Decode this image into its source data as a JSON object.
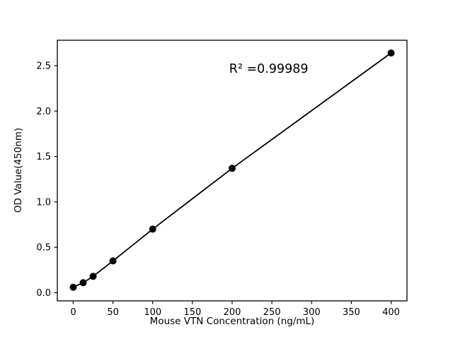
{
  "figure": {
    "background": "#ffffff"
  },
  "chart_data": {
    "type": "scatter",
    "title": "",
    "xlabel": "Mouse VTN Concentration (ng/mL)",
    "ylabel": "OD Value(450nm)",
    "x": [
      0,
      12.5,
      25,
      50,
      100,
      200,
      400
    ],
    "y": [
      0.06,
      0.11,
      0.18,
      0.35,
      0.7,
      1.37,
      2.64
    ],
    "trendline": true,
    "xlim": [
      -20,
      420
    ],
    "ylim": [
      -0.09,
      2.78
    ],
    "xticks": [
      "0",
      "50",
      "100",
      "150",
      "200",
      "250",
      "300",
      "350",
      "400"
    ],
    "yticks": [
      "0.0",
      "0.5",
      "1.0",
      "1.5",
      "2.0",
      "2.5"
    ],
    "annotation": {
      "text": "R² =0.99989",
      "x": 246,
      "y": 2.47
    },
    "grid": false,
    "legend_position": "none",
    "line_color": "#000000",
    "marker_color": "#000000",
    "axis_color": "#000000",
    "background_color": "#ffffff"
  }
}
